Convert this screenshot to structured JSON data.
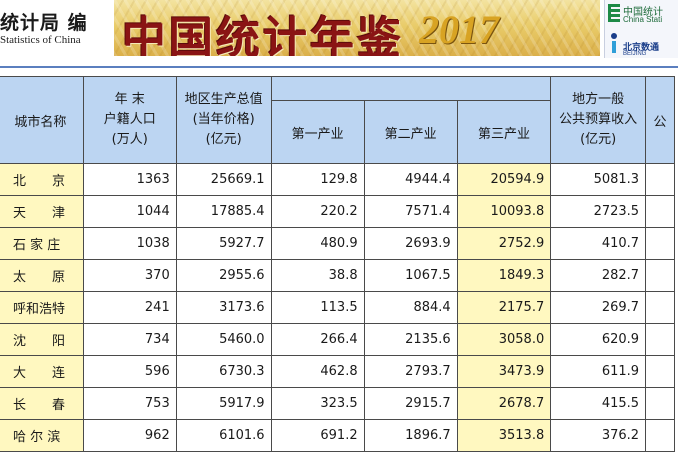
{
  "banner": {
    "left_cn": "统计局 编",
    "left_en": "Statistics of China",
    "title_cn": "中国统计年鉴",
    "title_year": "2017",
    "logo_top_cn": "中国统计",
    "logo_top_en": "China Stati",
    "logo_bottom_cn": "北京数通",
    "logo_bottom_en": "BEIJING"
  },
  "table": {
    "headers": {
      "city": "城市名称",
      "population_l1": "年 末",
      "population_l2": "户籍人口",
      "population_l3": "(万人)",
      "gdp_l1": "地区生产总值",
      "gdp_l2": "(当年价格)",
      "gdp_l3": "(亿元)",
      "primary": "第一产业",
      "secondary": "第二产业",
      "tertiary": "第三产业",
      "revenue_l1": "地方一般",
      "revenue_l2": "公共预算收入",
      "revenue_l3": "(亿元)",
      "next_col": "公"
    },
    "rows": [
      {
        "city": "北　　京",
        "population": "1363",
        "gdp": "25669.1",
        "primary": "129.8",
        "secondary": "4944.4",
        "tertiary": "20594.9",
        "revenue": "5081.3"
      },
      {
        "city": "天　　津",
        "population": "1044",
        "gdp": "17885.4",
        "primary": "220.2",
        "secondary": "7571.4",
        "tertiary": "10093.8",
        "revenue": "2723.5"
      },
      {
        "city": "石 家 庄",
        "population": "1038",
        "gdp": "5927.7",
        "primary": "480.9",
        "secondary": "2693.9",
        "tertiary": "2752.9",
        "revenue": "410.7"
      },
      {
        "city": "太　　原",
        "population": "370",
        "gdp": "2955.6",
        "primary": "38.8",
        "secondary": "1067.5",
        "tertiary": "1849.3",
        "revenue": "282.7"
      },
      {
        "city": "呼和浩特",
        "population": "241",
        "gdp": "3173.6",
        "primary": "113.5",
        "secondary": "884.4",
        "tertiary": "2175.7",
        "revenue": "269.7"
      },
      {
        "city": "沈　　阳",
        "population": "734",
        "gdp": "5460.0",
        "primary": "266.4",
        "secondary": "2135.6",
        "tertiary": "3058.0",
        "revenue": "620.9"
      },
      {
        "city": "大　　连",
        "population": "596",
        "gdp": "6730.3",
        "primary": "462.8",
        "secondary": "2793.7",
        "tertiary": "3473.9",
        "revenue": "611.9"
      },
      {
        "city": "长　　春",
        "population": "753",
        "gdp": "5917.9",
        "primary": "323.5",
        "secondary": "2915.7",
        "tertiary": "2678.7",
        "revenue": "415.5"
      },
      {
        "city": "哈 尔 滨",
        "population": "962",
        "gdp": "6101.6",
        "primary": "691.2",
        "secondary": "1896.7",
        "tertiary": "3513.8",
        "revenue": "376.2"
      }
    ]
  },
  "colors": {
    "header_bg": "#bcd5f2",
    "highlight_bg": "#fff8c0",
    "title_red": "#8a1414",
    "year_gold": "#d8a323"
  }
}
